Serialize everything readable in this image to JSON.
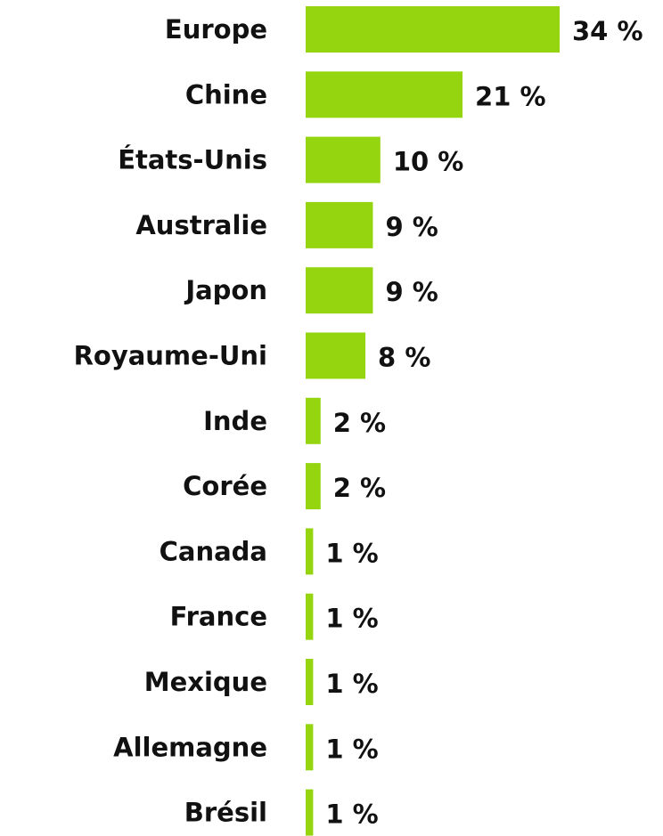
{
  "chart_data": {
    "type": "barh",
    "categories": [
      "Europe",
      "Chine",
      "États-Unis",
      "Australie",
      "Japon",
      "Royaume-Uni",
      "Inde",
      "Corée",
      "Canada",
      "France",
      "Mexique",
      "Allemagne",
      "Brésil"
    ],
    "values": [
      34,
      21,
      10,
      9,
      9,
      8,
      2,
      2,
      1,
      1,
      1,
      1,
      1
    ],
    "value_labels": [
      "34 %",
      "21 %",
      "10 %",
      "9 %",
      "9 %",
      "8 %",
      "2 %",
      "2 %",
      "1 %",
      "1 %",
      "1 %",
      "1 %",
      "1 %"
    ],
    "color": "#95d50f"
  }
}
